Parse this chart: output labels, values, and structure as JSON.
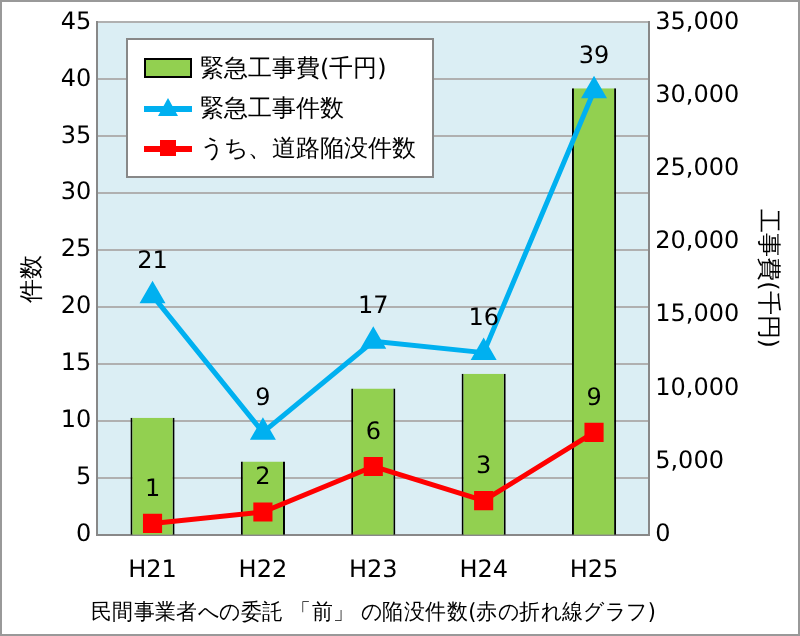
{
  "chart_data": {
    "type": "bar",
    "xlabel": "民間事業者への委託 「前」 の陥没件数(赤の折れ線グラフ)",
    "ylabel": "件数",
    "y2label": "工事費(千円)",
    "categories": [
      "H21",
      "H22",
      "H23",
      "H24",
      "H25"
    ],
    "series": [
      {
        "name": "緊急工事費(千円)",
        "axis": "y2",
        "color": "#92d050",
        "values": [
          8000,
          5000,
          10000,
          11000,
          30500
        ]
      },
      {
        "name": "緊急工事件数",
        "type": "line",
        "marker": "triangle",
        "color": "#00b0f0",
        "values": [
          21,
          9,
          17,
          16,
          39
        ],
        "value_labels": [
          "21",
          "9",
          "17",
          "16",
          "39"
        ]
      },
      {
        "name": "うち、道路陥没件数",
        "type": "line",
        "marker": "square",
        "color": "#ff0000",
        "values": [
          1,
          2,
          6,
          3,
          9
        ],
        "value_labels": [
          "1",
          "2",
          "6",
          "3",
          "9"
        ]
      }
    ],
    "ylim": [
      0,
      45
    ],
    "yticks": [
      0,
      5,
      10,
      15,
      20,
      25,
      30,
      35,
      40,
      45
    ],
    "y2lim": [
      0,
      35000
    ],
    "y2ticks": [
      {
        "value": 0,
        "label": "0"
      },
      {
        "value": 5000,
        "label": "5,000"
      },
      {
        "value": 10000,
        "label": "10,000"
      },
      {
        "value": 15000,
        "label": "15,000"
      },
      {
        "value": 20000,
        "label": "20,000"
      },
      {
        "value": 25000,
        "label": "25,000"
      },
      {
        "value": 30000,
        "label": "30,000"
      },
      {
        "value": 35000,
        "label": "35,000"
      }
    ],
    "grid": "y",
    "legend": "top left"
  }
}
